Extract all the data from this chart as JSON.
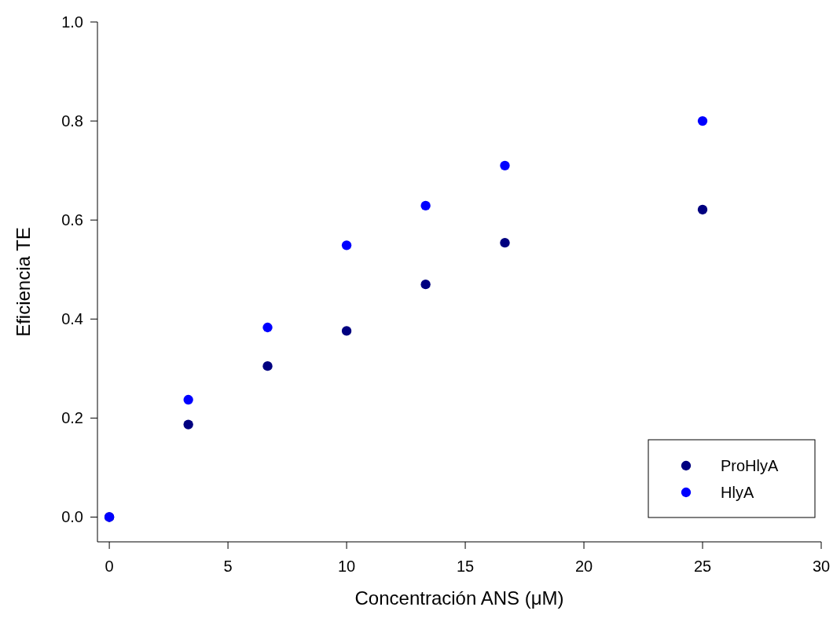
{
  "chart_data": {
    "type": "scatter",
    "xlabel": "Concentración ANS (μM)",
    "ylabel": "Eficiencia TE",
    "x": [
      0,
      3.33,
      6.67,
      10,
      13.33,
      16.67,
      25
    ],
    "series": [
      {
        "name": "ProHlyA",
        "color": "#000080",
        "values": [
          0,
          0.187,
          0.305,
          0.376,
          0.47,
          0.554,
          0.621
        ]
      },
      {
        "name": "HlyA",
        "color": "#0000ff",
        "values": [
          0,
          0.237,
          0.383,
          0.549,
          0.629,
          0.71,
          0.8
        ]
      }
    ],
    "xlim": [
      -0.5,
      30
    ],
    "xticks": [
      0,
      5,
      10,
      15,
      20,
      25,
      30
    ],
    "ylim": [
      -0.05,
      1.0
    ],
    "yticks": [
      {
        "value": 0,
        "label": "0.0"
      },
      {
        "value": 0.2,
        "label": "0.2"
      },
      {
        "value": 0.4,
        "label": "0.4"
      },
      {
        "value": 0.6,
        "label": "0.6"
      },
      {
        "value": 0.8,
        "label": "0.8"
      },
      {
        "value": 1.0,
        "label": "1.0"
      }
    ],
    "marker": "circle",
    "grid": false,
    "legend": "bottom right"
  }
}
